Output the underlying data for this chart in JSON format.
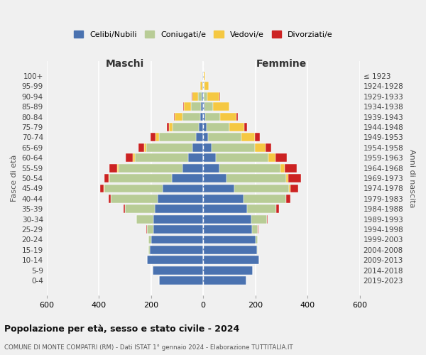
{
  "age_groups": [
    "0-4",
    "5-9",
    "10-14",
    "15-19",
    "20-24",
    "25-29",
    "30-34",
    "35-39",
    "40-44",
    "45-49",
    "50-54",
    "55-59",
    "60-64",
    "65-69",
    "70-74",
    "75-79",
    "80-84",
    "85-89",
    "90-94",
    "95-99",
    "100+"
  ],
  "birth_years": [
    "2019-2023",
    "2014-2018",
    "2009-2013",
    "2004-2008",
    "1999-2003",
    "1994-1998",
    "1989-1993",
    "1984-1988",
    "1979-1983",
    "1974-1978",
    "1969-1973",
    "1964-1968",
    "1959-1963",
    "1954-1958",
    "1949-1953",
    "1944-1948",
    "1939-1943",
    "1934-1938",
    "1929-1933",
    "1924-1928",
    "≤ 1923"
  ],
  "colors": {
    "celibi": "#4a72b0",
    "coniugati": "#b8cc96",
    "vedovi": "#f5c842",
    "divorziati": "#cc2222"
  },
  "male": {
    "celibi": [
      170,
      195,
      215,
      205,
      200,
      190,
      190,
      185,
      175,
      155,
      120,
      80,
      58,
      42,
      28,
      18,
      12,
      8,
      5,
      2,
      2
    ],
    "coniugati": [
      0,
      0,
      0,
      5,
      10,
      25,
      65,
      115,
      180,
      225,
      240,
      245,
      205,
      175,
      140,
      100,
      68,
      38,
      14,
      2,
      0
    ],
    "vedovi": [
      0,
      0,
      0,
      0,
      0,
      0,
      0,
      0,
      0,
      2,
      3,
      4,
      6,
      10,
      16,
      12,
      28,
      28,
      22,
      8,
      2
    ],
    "divorziati": [
      0,
      0,
      0,
      0,
      0,
      2,
      2,
      5,
      8,
      12,
      15,
      30,
      28,
      22,
      18,
      8,
      4,
      2,
      2,
      0,
      0
    ]
  },
  "female": {
    "celibi": [
      165,
      190,
      215,
      205,
      200,
      188,
      185,
      168,
      155,
      120,
      90,
      62,
      48,
      32,
      18,
      12,
      8,
      5,
      3,
      2,
      2
    ],
    "coniugati": [
      0,
      0,
      0,
      5,
      10,
      22,
      60,
      112,
      162,
      208,
      228,
      235,
      202,
      165,
      128,
      88,
      58,
      32,
      12,
      2,
      0
    ],
    "vedovi": [
      0,
      0,
      0,
      0,
      0,
      0,
      0,
      0,
      2,
      5,
      8,
      14,
      28,
      42,
      52,
      58,
      62,
      62,
      48,
      18,
      5
    ],
    "divorziati": [
      0,
      0,
      0,
      0,
      0,
      2,
      2,
      10,
      15,
      30,
      50,
      48,
      42,
      22,
      18,
      10,
      6,
      2,
      2,
      0,
      0
    ]
  },
  "title": "Popolazione per età, sesso e stato civile - 2024",
  "subtitle": "COMUNE DI MONTE COMPATRI (RM) - Dati ISTAT 1° gennaio 2024 - Elaborazione TUTTITALIA.IT",
  "xlabel_left": "Maschi",
  "xlabel_right": "Femmine",
  "ylabel_left": "Fasce di età",
  "ylabel_right": "Anni di nascita",
  "xlim": 600,
  "legend_labels": [
    "Celibi/Nubili",
    "Coniugati/e",
    "Vedovi/e",
    "Divorziati/e"
  ],
  "background_color": "#f0f0f0"
}
